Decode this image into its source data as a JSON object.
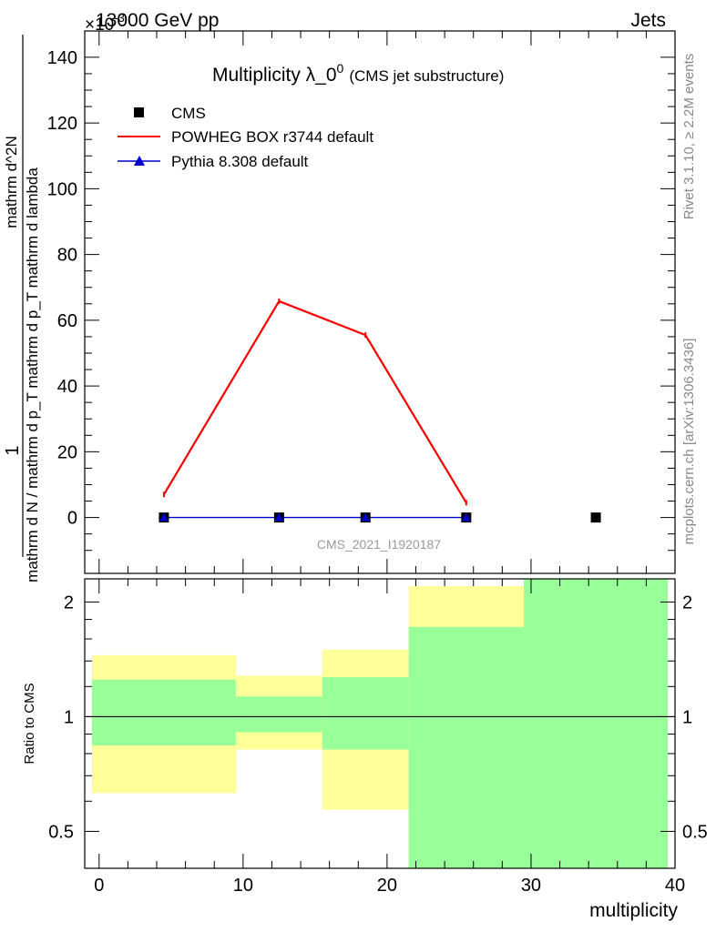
{
  "header": {
    "left": "13000 GeV pp",
    "right": "Jets",
    "exponent_prefix": "×10",
    "exponent": "-3"
  },
  "side_labels": {
    "rivet": "Rivet 3.1.10, ≥ 2.2M events",
    "mcplots": "mcplots.cern.ch [arXiv:1306.3436]"
  },
  "watermark": "CMS_2021_I1920187",
  "title": {
    "main": "Multiplicity λ_0",
    "sup": "0",
    "sub": "(CMS jet substructure)"
  },
  "colors": {
    "powheg": "#ff0000",
    "pythia": "#0000cc",
    "cms": "#000000",
    "band_inner": "#99ff99",
    "band_outer": "#ffff99"
  },
  "chart_data": [
    {
      "type": "line",
      "panel": "main",
      "xlabel": "",
      "ylabel_numerator": "1",
      "ylabel_denominator": "mathrm d N / mathrm d p_T mathrm d p_T mathrm d lambda",
      "ylabel_fraction_numerator": "mathrm d^2N",
      "xlim": [
        -1,
        40
      ],
      "ylim": [
        -17,
        148
      ],
      "y_scale_note": "×10^-3",
      "yticks": [
        0,
        20,
        40,
        60,
        80,
        100,
        120,
        140
      ],
      "legend_placement": "top-left",
      "series": [
        {
          "name": "CMS",
          "style": "markers-square",
          "x": [
            4.5,
            12.5,
            18.5,
            25.5,
            34.5
          ],
          "y": [
            0,
            0,
            0,
            0,
            0
          ]
        },
        {
          "name": "POWHEG BOX r3744 default",
          "style": "line",
          "x": [
            4.5,
            12.5,
            18.5,
            25.5
          ],
          "y": [
            7,
            65.8,
            55.5,
            4.5
          ]
        },
        {
          "name": "Pythia 8.308 default",
          "style": "line-triangle",
          "x": [
            4.5,
            12.5,
            18.5,
            25.5
          ],
          "y": [
            0,
            0,
            0,
            0
          ]
        }
      ]
    },
    {
      "type": "area",
      "panel": "ratio",
      "xlabel": "multiplicity",
      "ylabel": "Ratio to CMS",
      "y_scale": "log",
      "xlim": [
        -1,
        40
      ],
      "ylim": [
        0.4,
        2.3
      ],
      "xticks": [
        0,
        10,
        20,
        30,
        40
      ],
      "yticks": [
        0.5,
        1,
        2
      ],
      "bins": [
        {
          "x0": -0.5,
          "x1": 9.5,
          "outer": [
            0.63,
            1.45
          ],
          "inner": [
            0.84,
            1.25
          ]
        },
        {
          "x0": 9.5,
          "x1": 15.5,
          "outer": [
            0.82,
            1.28
          ],
          "inner": [
            0.91,
            1.13
          ]
        },
        {
          "x0": 15.5,
          "x1": 21.5,
          "outer": [
            0.57,
            1.5
          ],
          "inner": [
            0.82,
            1.27
          ]
        },
        {
          "x0": 21.5,
          "x1": 29.5,
          "outer": [
            0.4,
            2.2
          ],
          "inner": [
            0.4,
            1.72
          ]
        },
        {
          "x0": 29.5,
          "x1": 39.5,
          "outer": [
            0.4,
            2.3
          ],
          "inner": [
            0.4,
            2.3
          ]
        }
      ],
      "reference_line": 1
    }
  ]
}
